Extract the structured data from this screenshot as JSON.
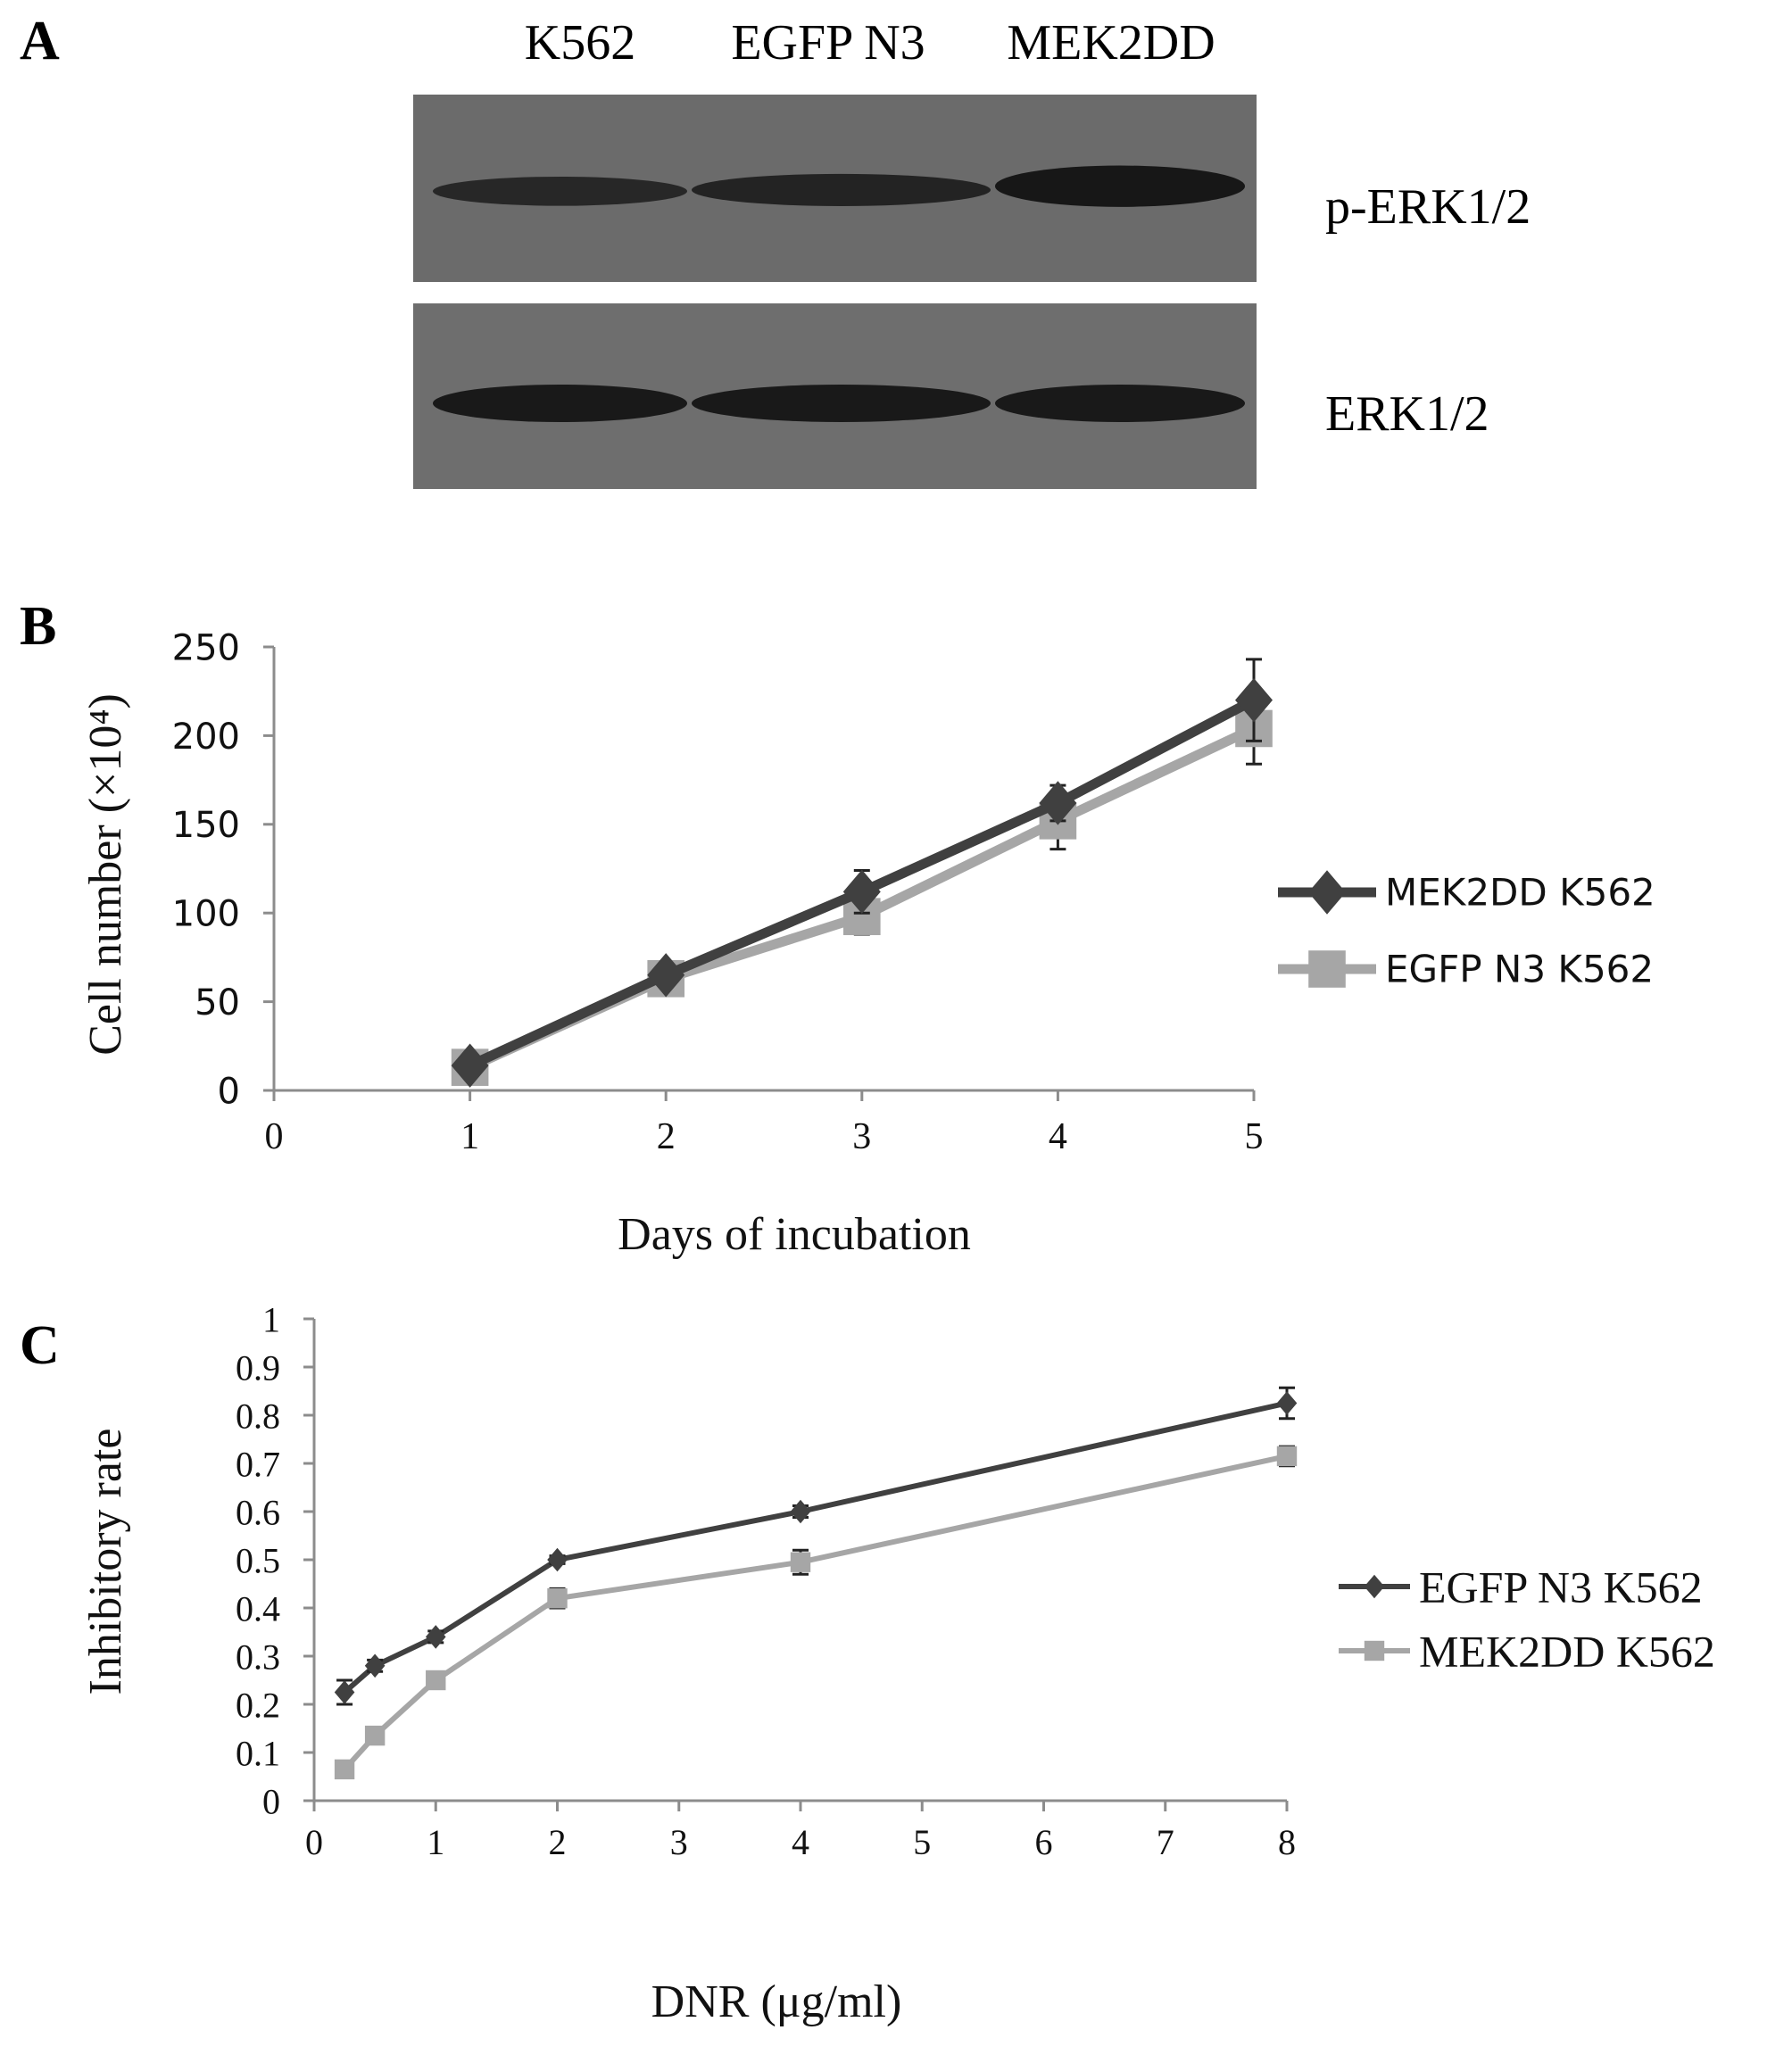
{
  "panel_a": {
    "label": "A",
    "lanes": [
      "K562",
      "EGFP N3",
      "MEK2DD"
    ],
    "blots": [
      {
        "name": "p-ERK1/2",
        "band_intensity": [
          0.55,
          0.65,
          0.95
        ]
      },
      {
        "name": "ERK1/2",
        "band_intensity": [
          0.9,
          0.9,
          0.9
        ]
      }
    ],
    "colors": {
      "membrane": "#6b6b6b",
      "band": "#151515"
    }
  },
  "chart_data": [
    {
      "panel": "B",
      "type": "line",
      "title": "",
      "xlabel": "Days of incubation",
      "ylabel": "Cell number (×10⁴)",
      "x_ticks": [
        "0",
        "1",
        "2",
        "3",
        "4",
        "5"
      ],
      "y_ticks": [
        "0",
        "50",
        "100",
        "150",
        "200",
        "250"
      ],
      "xlim": [
        0,
        5
      ],
      "ylim": [
        0,
        250
      ],
      "legend_position": "right",
      "grid": false,
      "series": [
        {
          "name": "MEK2DD K562",
          "marker": "diamond",
          "color": "#404040",
          "x": [
            1,
            2,
            3,
            4,
            5
          ],
          "y": [
            14,
            65,
            112,
            162,
            220
          ],
          "err": [
            2,
            3,
            12,
            10,
            23
          ]
        },
        {
          "name": "EGFP N3 K562",
          "marker": "square",
          "color": "#a6a6a6",
          "x": [
            1,
            2,
            3,
            4,
            5
          ],
          "y": [
            13,
            63,
            98,
            152,
            204
          ],
          "err": [
            2,
            3,
            10,
            16,
            20
          ]
        }
      ]
    },
    {
      "panel": "C",
      "type": "line",
      "title": "",
      "xlabel": "DNR (μg/ml)",
      "ylabel": "Inhibitory rate",
      "x_ticks": [
        "0",
        "1",
        "2",
        "3",
        "4",
        "5",
        "6",
        "7",
        "8"
      ],
      "y_ticks": [
        "0",
        "0.1",
        "0.2",
        "0.3",
        "0.4",
        "0.5",
        "0.6",
        "0.7",
        "0.8",
        "0.9",
        "1"
      ],
      "xlim": [
        0,
        8
      ],
      "ylim": [
        0,
        1
      ],
      "legend_position": "right",
      "grid": false,
      "series": [
        {
          "name": "EGFP N3 K562",
          "marker": "diamond",
          "color": "#404040",
          "x": [
            0.25,
            0.5,
            1,
            2,
            4,
            8
          ],
          "y": [
            0.225,
            0.28,
            0.34,
            0.5,
            0.6,
            0.825
          ],
          "err": [
            0.025,
            0.012,
            0.012,
            0.008,
            0.012,
            0.032
          ]
        },
        {
          "name": "MEK2DD K562",
          "marker": "square",
          "color": "#a6a6a6",
          "x": [
            0.25,
            0.5,
            1,
            2,
            4,
            8
          ],
          "y": [
            0.065,
            0.135,
            0.25,
            0.42,
            0.495,
            0.715
          ],
          "err": [
            0.008,
            0.008,
            0.01,
            0.02,
            0.025,
            0.02
          ]
        }
      ]
    }
  ]
}
